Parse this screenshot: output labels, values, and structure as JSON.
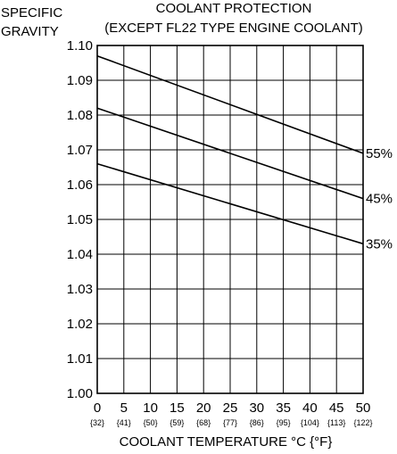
{
  "chart_data": {
    "type": "line",
    "title": "COOLANT PROTECTION",
    "subtitle": "(EXCEPT FL22 TYPE ENGINE COOLANT)",
    "ylabel_lines": [
      "SPECIFIC",
      "GRAVITY"
    ],
    "xlabel": "COOLANT TEMPERATURE  °C {°F}",
    "x_ticks": [
      0,
      5,
      10,
      15,
      20,
      25,
      30,
      35,
      40,
      45,
      50
    ],
    "x_tick_labels": [
      "0",
      "5",
      "10",
      "15",
      "20",
      "25",
      "30",
      "35",
      "40",
      "45",
      "50"
    ],
    "x_sub_labels": [
      "{32}",
      "{41}",
      "{50}",
      "{59}",
      "{68}",
      "{77}",
      "{86}",
      "{95}",
      "{104}",
      "{113}",
      "{122}"
    ],
    "y_ticks": [
      1.0,
      1.01,
      1.02,
      1.03,
      1.04,
      1.05,
      1.06,
      1.07,
      1.08,
      1.09,
      1.1
    ],
    "y_tick_labels": [
      "1.00",
      "1.01",
      "1.02",
      "1.03",
      "1.04",
      "1.05",
      "1.06",
      "1.07",
      "1.08",
      "1.09",
      "1.10"
    ],
    "xlim": [
      0,
      50
    ],
    "ylim": [
      1.0,
      1.1
    ],
    "grid": true,
    "series": [
      {
        "name": "55%",
        "x": [
          0,
          50
        ],
        "y": [
          1.097,
          1.069
        ]
      },
      {
        "name": "45%",
        "x": [
          0,
          50
        ],
        "y": [
          1.082,
          1.056
        ]
      },
      {
        "name": "35%",
        "x": [
          0,
          50
        ],
        "y": [
          1.066,
          1.043
        ]
      }
    ]
  }
}
